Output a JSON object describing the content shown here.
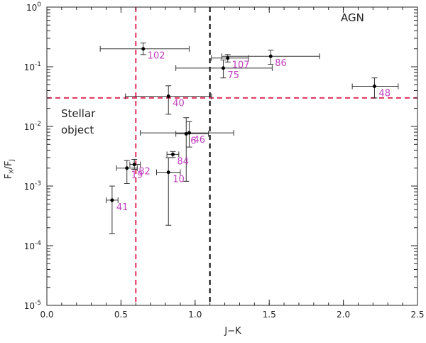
{
  "chart_data": {
    "type": "scatter",
    "xlabel": "J−K",
    "ylabel_main": "F",
    "ylabel_sub_num": "X",
    "ylabel_sub_den": "J",
    "xlim": [
      0.0,
      2.5
    ],
    "ylim": [
      1e-05,
      1
    ],
    "yscale": "log",
    "x_ticks": [
      "0.0",
      "0.5",
      "1.0",
      "1.5",
      "2.0",
      "2.5"
    ],
    "x_tick_values": [
      0.0,
      0.5,
      1.0,
      1.5,
      2.0,
      2.5
    ],
    "y_tick_exponents": [
      -5,
      -4,
      -3,
      -2,
      -1,
      0
    ],
    "y_tick_base": "10",
    "annotations": {
      "agn": "AGN",
      "stellar_line1": "Stellar",
      "stellar_line2": "object"
    },
    "reference_lines": [
      {
        "orientation": "vertical",
        "value": 0.6,
        "color": "#e0305a"
      },
      {
        "orientation": "vertical",
        "value": 1.1,
        "color": "#000000"
      },
      {
        "orientation": "horizontal",
        "value": 0.03,
        "color": "#e0305a"
      }
    ],
    "points": [
      {
        "label": "102",
        "x": 0.65,
        "y": 0.2,
        "xerr": [
          0.36,
          0.96
        ],
        "yerr": [
          0.16,
          0.25
        ]
      },
      {
        "label": "107",
        "x": 1.22,
        "y": 0.14,
        "xerr": [
          1.11,
          1.36
        ],
        "yerr": [
          0.12,
          0.16
        ]
      },
      {
        "label": "86",
        "x": 1.51,
        "y": 0.15,
        "xerr": [
          1.18,
          1.84
        ],
        "yerr": [
          0.11,
          0.19
        ]
      },
      {
        "label": "75",
        "x": 1.19,
        "y": 0.095,
        "xerr": [
          0.87,
          1.52
        ],
        "yerr": [
          0.065,
          0.13
        ]
      },
      {
        "label": "48",
        "x": 2.21,
        "y": 0.047,
        "xerr": [
          2.06,
          2.37
        ],
        "yerr": [
          0.03,
          0.065
        ]
      },
      {
        "label": "40",
        "x": 0.82,
        "y": 0.032,
        "xerr": [
          0.53,
          1.11
        ],
        "yerr": [
          0.016,
          0.048
        ]
      },
      {
        "label": "46",
        "x": 0.96,
        "y": 0.0078,
        "xerr": [
          0.63,
          1.26
        ],
        "yerr": [
          0.0045,
          0.012
        ]
      },
      {
        "label": "6",
        "x": 0.94,
        "y": 0.0075,
        "xerr": [
          0.87,
          1.09
        ],
        "yerr": [
          0.0012,
          0.014
        ]
      },
      {
        "label": "84",
        "x": 0.85,
        "y": 0.0034,
        "xerr": [
          0.81,
          0.89
        ],
        "yerr": [
          0.003,
          0.0038
        ]
      },
      {
        "label": "82",
        "x": 0.59,
        "y": 0.0023,
        "xerr": [
          0.56,
          0.63
        ],
        "yerr": [
          0.0019,
          0.0028
        ]
      },
      {
        "label": "19",
        "x": 0.54,
        "y": 0.002,
        "xerr": [
          0.47,
          0.61
        ],
        "yerr": [
          0.0011,
          0.0027
        ]
      },
      {
        "label": "10",
        "x": 0.82,
        "y": 0.0017,
        "xerr": [
          0.74,
          0.9
        ],
        "yerr": [
          0.00022,
          0.003
        ]
      },
      {
        "label": "41",
        "x": 0.44,
        "y": 0.00058,
        "xerr": [
          0.4,
          0.48
        ],
        "yerr": [
          0.00016,
          0.001
        ]
      }
    ]
  }
}
